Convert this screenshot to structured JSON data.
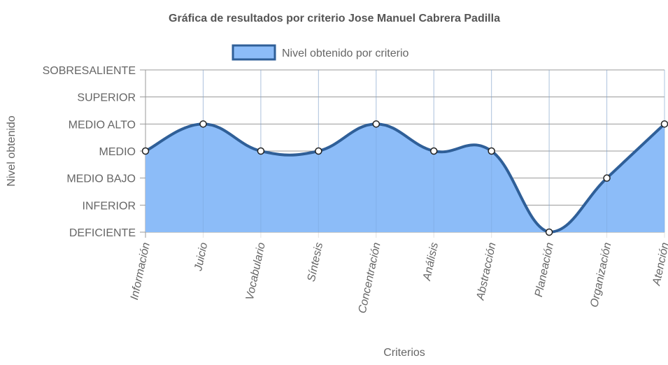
{
  "chart_data": {
    "type": "line",
    "title": "Gráfica de resultados por criterio Jose Manuel Cabrera Padilla",
    "xlabel": "Criterios",
    "ylabel": "Nivel obtenido",
    "categories": [
      "Información",
      "Juicio",
      "Vocabulario",
      "Síntesis",
      "Concentración",
      "Análisis",
      "Abstracción",
      "Planeación",
      "Organización",
      "Atención"
    ],
    "y_levels": [
      "DEFICIENTE",
      "INFERIOR",
      "MEDIO BAJO",
      "MEDIO",
      "MEDIO ALTO",
      "SUPERIOR",
      "SOBRESALIENTE"
    ],
    "ylim": [
      0,
      6
    ],
    "series": [
      {
        "name": "Nivel obtenido por criterio",
        "values": [
          3,
          4,
          3,
          3,
          4,
          3,
          3,
          0,
          2,
          4
        ],
        "fill": true
      }
    ],
    "legend": "top-center",
    "grid": true,
    "colors": {
      "line": "#2f5f98",
      "fill": "#8cbcf8",
      "point_fill": "#ffffff",
      "point_stroke": "#222222",
      "grid": "#e3e3e3",
      "grid_strong": "#9a9a9a"
    }
  }
}
